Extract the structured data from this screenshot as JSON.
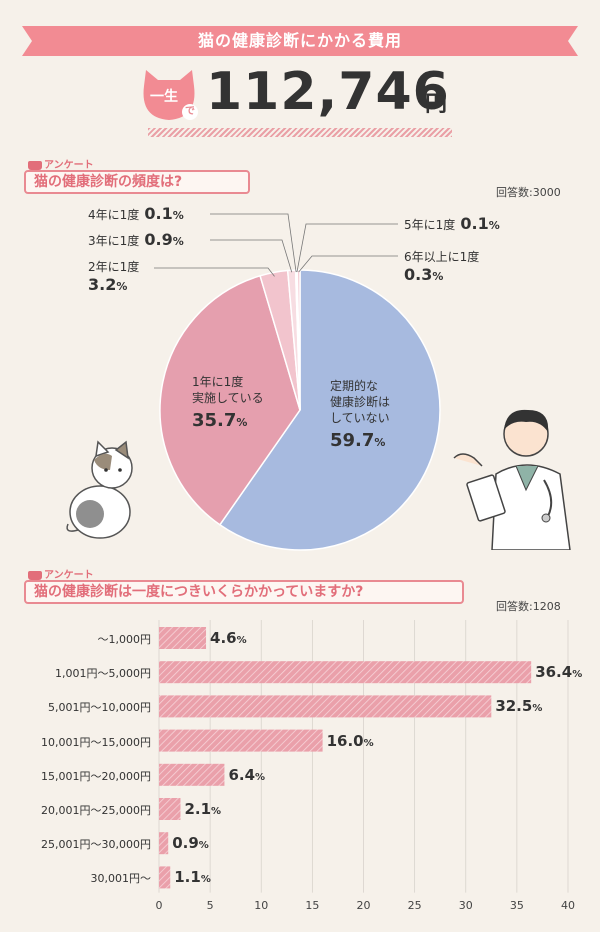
{
  "header": {
    "title": "猫の健康診断にかかる費用",
    "badge_text": "一生",
    "badge_sub": "で",
    "total_value": "112,746",
    "total_unit": "円"
  },
  "q1": {
    "tag": "アンケート",
    "question": "猫の健康診断の頻度は?",
    "respondents": "回答数:3000"
  },
  "q2": {
    "tag": "アンケート",
    "question": "猫の健康診断は一度につきいくらかかっていますか?",
    "respondents": "回答数:1208"
  },
  "colors": {
    "banner": "#f28b93",
    "pie_blue": "#a7badf",
    "pie_pink": "#e59fae",
    "pie_light": "#f2c4cd",
    "pie_lighter": "#f7dde2",
    "bar": "#eaa0aa",
    "accent": "#e26e7a"
  },
  "chart_data": [
    {
      "type": "pie",
      "title": "猫の健康診断の頻度は?",
      "slices": [
        {
          "label": "定期的な健康診断はしていない",
          "label_lines": [
            "定期的な",
            "健康診断は",
            "していない"
          ],
          "value": 59.7,
          "display": "59.7",
          "unit": "%"
        },
        {
          "label": "1年に1度実施している",
          "label_lines": [
            "1年に1度",
            "実施している"
          ],
          "value": 35.7,
          "display": "35.7",
          "unit": "%"
        },
        {
          "label": "2年に1度",
          "value": 3.2,
          "display": "3.2",
          "unit": "%"
        },
        {
          "label": "3年に1度",
          "value": 0.9,
          "display": "0.9",
          "unit": "%"
        },
        {
          "label": "4年に1度",
          "value": 0.1,
          "display": "0.1",
          "unit": "%"
        },
        {
          "label": "5年に1度",
          "value": 0.1,
          "display": "0.1",
          "unit": "%"
        },
        {
          "label": "6年以上に1度",
          "value": 0.3,
          "display": "0.3",
          "unit": "%"
        }
      ]
    },
    {
      "type": "bar",
      "orientation": "horizontal",
      "title": "猫の健康診断は一度につきいくらかかっていますか?",
      "categories": [
        "〜1,000円",
        "1,001円〜5,000円",
        "5,001円〜10,000円",
        "10,001円〜15,000円",
        "15,001円〜20,000円",
        "20,001円〜25,000円",
        "25,001円〜30,000円",
        "30,001円〜"
      ],
      "values": [
        4.6,
        36.4,
        32.5,
        16.0,
        6.4,
        2.1,
        0.9,
        1.1
      ],
      "display": [
        "4.6",
        "36.4",
        "32.5",
        "16.0",
        "6.4",
        "2.1",
        "0.9",
        "1.1"
      ],
      "unit": "%",
      "xlim": [
        0,
        40
      ],
      "xticks": [
        "0",
        "5",
        "10",
        "15",
        "20",
        "25",
        "30",
        "35",
        "40"
      ],
      "grid": true
    }
  ]
}
